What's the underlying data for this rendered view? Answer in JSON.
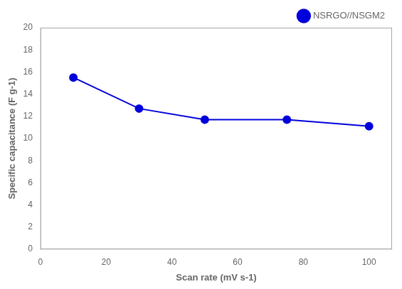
{
  "chart_data": {
    "type": "line",
    "x": [
      10,
      30,
      50,
      75,
      100
    ],
    "series": [
      {
        "name": "NSRGO//NSGM2",
        "color": "#0000DD",
        "values": [
          15.5,
          12.7,
          11.7,
          11.7,
          11.1
        ],
        "marker": "circle",
        "line_style": "solid"
      }
    ],
    "xlabel": "Scan rate (mV s-1)",
    "ylabel": "Specific capacitance (F g-1)",
    "xlim": [
      0,
      107
    ],
    "ylim": [
      0,
      20
    ],
    "xticks": [
      0,
      20,
      40,
      60,
      80,
      100
    ],
    "yticks": [
      0,
      2,
      4,
      6,
      8,
      10,
      12,
      14,
      16,
      18,
      20
    ],
    "grid": false,
    "legend": "upper right"
  }
}
